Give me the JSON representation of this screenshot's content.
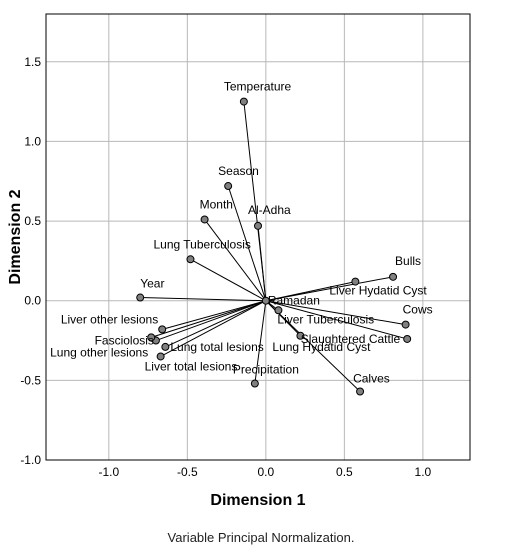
{
  "chart_data": {
    "type": "scatter",
    "xlabel": "Dimension 1",
    "ylabel": "Dimension 2",
    "xlim": [
      -1.4,
      1.3
    ],
    "ylim": [
      -1.0,
      1.8
    ],
    "xticks": [
      "-1.0",
      "-0.5",
      "0.0",
      "0.5",
      "1.0"
    ],
    "yticks": [
      "-1.0",
      "-0.5",
      "0.0",
      "0.5",
      "1.0",
      "1.5"
    ],
    "grid": true,
    "vectors_from_origin": true,
    "points": [
      {
        "label": "Temperature",
        "x": -0.14,
        "y": 1.25
      },
      {
        "label": "Season",
        "x": -0.24,
        "y": 0.72
      },
      {
        "label": "Month",
        "x": -0.39,
        "y": 0.51
      },
      {
        "label": "Al-Adha",
        "x": -0.05,
        "y": 0.47
      },
      {
        "label": "Lung Tuberculosis",
        "x": -0.48,
        "y": 0.26
      },
      {
        "label": "Year",
        "x": -0.8,
        "y": 0.02
      },
      {
        "label": "Ramadan",
        "x": 0.0,
        "y": 0.0
      },
      {
        "label": "Bulls",
        "x": 0.81,
        "y": 0.15
      },
      {
        "label": "Liver Hydatid Cyst",
        "x": 0.57,
        "y": 0.12
      },
      {
        "label": "Cows",
        "x": 0.89,
        "y": -0.15
      },
      {
        "label": "Slaughtered Cattle",
        "x": 0.9,
        "y": -0.24
      },
      {
        "label": "Liver Tuberculosis",
        "x": 0.08,
        "y": -0.06
      },
      {
        "label": "Lung Hydatid Cyst",
        "x": 0.22,
        "y": -0.22
      },
      {
        "label": "Calves",
        "x": 0.6,
        "y": -0.57
      },
      {
        "label": "Precipitation",
        "x": -0.07,
        "y": -0.52
      },
      {
        "label": "Liver other lesions",
        "x": -0.66,
        "y": -0.18
      },
      {
        "label": "Fasciolosis",
        "x": -0.7,
        "y": -0.25
      },
      {
        "label": "Lung total lesions",
        "x": -0.64,
        "y": -0.29
      },
      {
        "label": "Lung other lesions",
        "x": -0.73,
        "y": -0.23
      },
      {
        "label": "Liver total lesions",
        "x": -0.67,
        "y": -0.35
      }
    ]
  },
  "footnote": "Variable Principal Normalization."
}
